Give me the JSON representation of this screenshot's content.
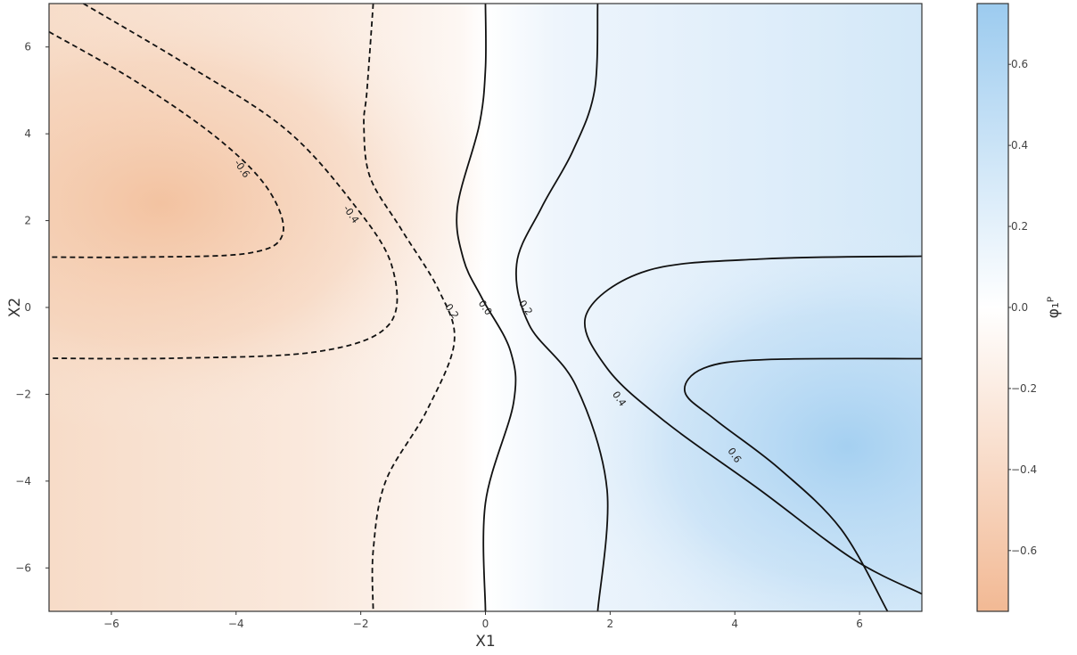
{
  "chart_data": {
    "type": "heatmap",
    "subtype": "filled contour with labeled contour lines",
    "xlabel": "X1",
    "ylabel": "X2",
    "xlim": [
      -7,
      7
    ],
    "ylim": [
      -7,
      7
    ],
    "xticks": [
      -6,
      -4,
      -2,
      0,
      2,
      4,
      6
    ],
    "yticks": [
      -6,
      -4,
      -2,
      0,
      2,
      4,
      6
    ],
    "grid": false,
    "colormap": {
      "negative": "#f2b994",
      "zero": "#ffffff",
      "positive": "#9ccbef"
    },
    "colorbar": {
      "label": "φ₁ᴾ",
      "range": [
        -0.75,
        0.75
      ],
      "ticks": [
        "0.6",
        "0.4",
        "0.2",
        "0.0",
        "−0.2",
        "−0.4",
        "−0.6"
      ],
      "tick_values": [
        0.6,
        0.4,
        0.2,
        0.0,
        -0.2,
        -0.4,
        -0.6
      ]
    },
    "contour_levels": [
      -0.6,
      -0.4,
      -0.2,
      0.0,
      0.2,
      0.4,
      0.6
    ],
    "contour_lines": [
      {
        "level": -0.6,
        "label": "-0.6",
        "style": "dashed",
        "label_at": [
          -3.9,
          3.2
        ],
        "points": [
          [
            -7,
            6.35
          ],
          [
            -5.6,
            5.2
          ],
          [
            -4.3,
            3.9
          ],
          [
            -3.5,
            2.75
          ],
          [
            -3.25,
            1.7
          ],
          [
            -3.8,
            1.25
          ],
          [
            -5.5,
            1.16
          ],
          [
            -7,
            1.16
          ]
        ]
      },
      {
        "level": -0.4,
        "label": "-0.4",
        "style": "dashed",
        "label_at": [
          -2.15,
          2.15
        ],
        "points": [
          [
            -6.45,
            7
          ],
          [
            -4.8,
            5.6
          ],
          [
            -3.2,
            4.1
          ],
          [
            -2.1,
            2.35
          ],
          [
            -1.5,
            0.95
          ],
          [
            -1.55,
            -0.4
          ],
          [
            -2.7,
            -1.02
          ],
          [
            -5,
            -1.17
          ],
          [
            -7,
            -1.17
          ]
        ]
      },
      {
        "level": -0.2,
        "label": "-0.2",
        "style": "dashed",
        "label_at": [
          -0.55,
          -0.05
        ],
        "points": [
          [
            -1.8,
            7
          ],
          [
            -1.9,
            5
          ],
          [
            -1.95,
            4.2
          ],
          [
            -1.85,
            3
          ],
          [
            -1.35,
            1.8
          ],
          [
            -0.75,
            0.4
          ],
          [
            -0.5,
            -0.8
          ],
          [
            -0.95,
            -2.4
          ],
          [
            -1.6,
            -4.0
          ],
          [
            -1.8,
            -5.6
          ],
          [
            -1.8,
            -7
          ]
        ]
      },
      {
        "level": 0.0,
        "label": "0.0",
        "style": "solid",
        "label_at": [
          0.0,
          0.0
        ],
        "points": [
          [
            0.0,
            7
          ],
          [
            0.0,
            5.5
          ],
          [
            -0.1,
            4.2
          ],
          [
            -0.45,
            2.3
          ],
          [
            -0.35,
            1.1
          ],
          [
            -0.05,
            0.2
          ],
          [
            0.4,
            -1.0
          ],
          [
            0.45,
            -2.2
          ],
          [
            0.0,
            -4.5
          ],
          [
            0.0,
            -7
          ]
        ]
      },
      {
        "level": 0.2,
        "label": "0.2",
        "style": "solid",
        "label_at": [
          0.65,
          0.0
        ],
        "points": [
          [
            1.8,
            7
          ],
          [
            1.75,
            5.0
          ],
          [
            1.4,
            3.6
          ],
          [
            0.9,
            2.3
          ],
          [
            0.5,
            1.0
          ],
          [
            0.7,
            -0.4
          ],
          [
            1.45,
            -1.8
          ],
          [
            1.95,
            -4.2
          ],
          [
            1.8,
            -7
          ]
        ]
      },
      {
        "level": 0.4,
        "label": "0.4",
        "style": "solid",
        "label_at": [
          2.15,
          -2.1
        ],
        "points": [
          [
            7,
            1.18
          ],
          [
            4.5,
            1.12
          ],
          [
            2.6,
            0.85
          ],
          [
            1.62,
            -0.15
          ],
          [
            1.95,
            -1.4
          ],
          [
            2.9,
            -2.65
          ],
          [
            4.4,
            -4.2
          ],
          [
            5.9,
            -5.8
          ],
          [
            7,
            -6.6
          ]
        ]
      },
      {
        "level": 0.6,
        "label": "0.6",
        "style": "solid",
        "label_at": [
          4.0,
          -3.4
        ],
        "points": [
          [
            7,
            -1.18
          ],
          [
            4.5,
            -1.2
          ],
          [
            3.5,
            -1.4
          ],
          [
            3.2,
            -1.95
          ],
          [
            3.7,
            -2.6
          ],
          [
            4.7,
            -3.7
          ],
          [
            5.7,
            -5.1
          ],
          [
            6.45,
            -7
          ]
        ]
      }
    ]
  }
}
